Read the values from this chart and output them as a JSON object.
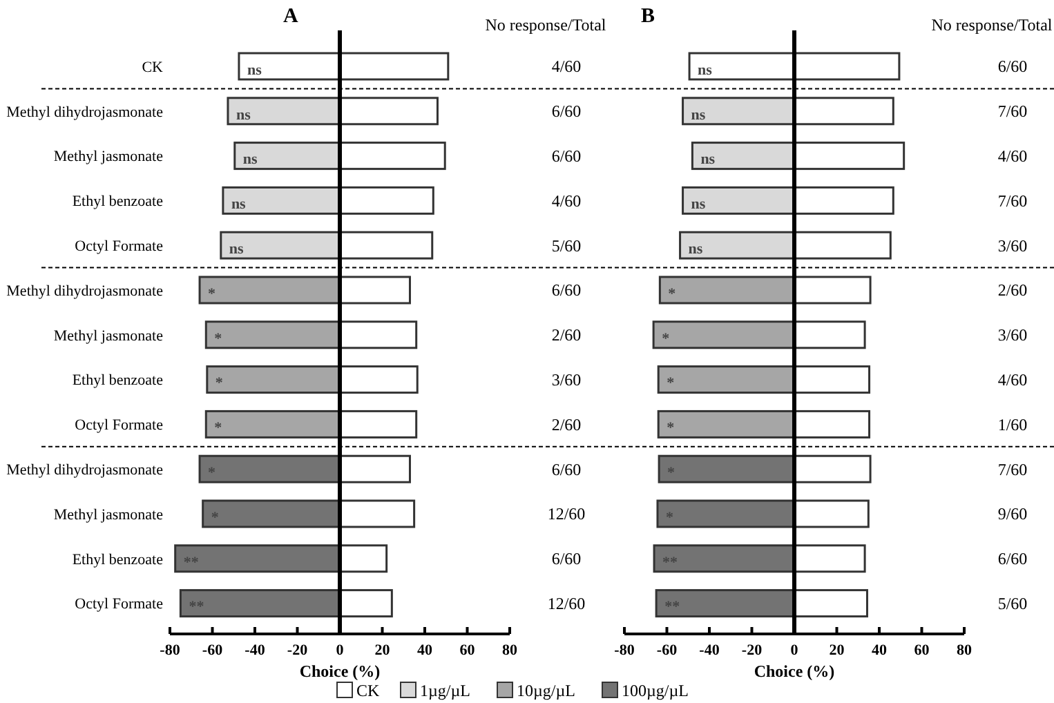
{
  "chart_data": [
    {
      "type": "bar",
      "title": "A",
      "xlabel": "Choice (%)",
      "orientation": "horizontal",
      "stacked": true,
      "legend": "bottom",
      "xlim": [
        -80,
        80
      ],
      "xticks": [
        -80,
        -60,
        -40,
        -20,
        0,
        20,
        40,
        60,
        80
      ],
      "categories": [
        "CK",
        "Methyl dihydrojasmonate",
        "Methyl jasmonate",
        "Ethyl benzoate",
        "Octyl Formate",
        "Methyl dihydrojasmonate",
        "Methyl jasmonate",
        "Ethyl benzoate",
        "Octyl Formate",
        "Methyl dihydrojasmonate",
        "Methyl jasmonate",
        "Ethyl benzoate",
        "Octyl Formate"
      ],
      "annotations": [
        "No response/Total"
      ],
      "series": [
        {
          "name": "CK",
          "color": "#ffffff",
          "values": [
            51,
            46,
            49.5,
            44,
            43.5,
            33,
            36,
            36.5,
            36,
            33,
            35,
            22,
            24.5
          ],
          "value_labels": [
            "4/60",
            "6/60",
            "6/60",
            "4/60",
            "5/60",
            "6/60",
            "2/60",
            "3/60",
            "2/60",
            "6/60",
            "12/60",
            "6/60",
            "12/60"
          ]
        },
        {
          "color": "#ffffff",
          "values": [
            -47.5,
            null,
            null,
            null,
            null,
            null,
            null,
            null,
            null,
            null,
            null,
            null,
            null
          ],
          "value_labels": [
            "ns",
            null,
            null,
            null,
            null,
            null,
            null,
            null,
            null,
            null,
            null,
            null,
            null
          ]
        },
        {
          "name": "1µg/µL",
          "color": "#d9d9d9",
          "values": [
            null,
            -52.7,
            -49.5,
            -55,
            -56,
            null,
            null,
            null,
            null,
            null,
            null,
            null,
            null
          ],
          "value_labels": [
            null,
            "ns",
            "ns",
            "ns",
            "ns",
            null,
            null,
            null,
            null,
            null,
            null,
            null,
            null
          ]
        },
        {
          "name": "10µg/µL",
          "color": "#a6a6a6",
          "values": [
            null,
            null,
            null,
            null,
            null,
            -66,
            -63,
            -62.5,
            -63,
            null,
            null,
            null,
            null
          ],
          "value_labels": [
            null,
            null,
            null,
            null,
            null,
            "*",
            "*",
            "*",
            "*",
            null,
            null,
            null,
            null
          ]
        },
        {
          "name": "100µg/µL",
          "color": "#737373",
          "values": [
            null,
            null,
            null,
            null,
            null,
            null,
            null,
            null,
            null,
            -66,
            -64.5,
            -77.5,
            -75
          ],
          "value_labels": [
            null,
            null,
            null,
            null,
            null,
            null,
            null,
            null,
            null,
            "*",
            "*",
            "**",
            "**"
          ]
        }
      ]
    },
    {
      "type": "bar",
      "title": "B",
      "xlabel": "Choice (%)",
      "orientation": "horizontal",
      "stacked": true,
      "legend": "bottom",
      "xlim": [
        -80,
        80
      ],
      "xticks": [
        -80,
        -60,
        -40,
        -20,
        0,
        20,
        40,
        60,
        80
      ],
      "categories": [
        null,
        null,
        null,
        null,
        null,
        null,
        null,
        null,
        null,
        null,
        null,
        null,
        null
      ],
      "annotations": [
        "No response/Total"
      ],
      "series": [
        {
          "name": "CK",
          "color": "#ffffff",
          "values": [
            49.4,
            46.6,
            51.6,
            46.6,
            45.3,
            35.8,
            33.2,
            35.3,
            35.3,
            35.8,
            34.9,
            33.2,
            34.3
          ],
          "value_labels": [
            "6/60",
            "7/60",
            "4/60",
            "7/60",
            "3/60",
            "2/60",
            "3/60",
            "4/60",
            "1/60",
            "7/60",
            "9/60",
            "6/60",
            "5/60"
          ]
        },
        {
          "color": "#ffffff",
          "values": [
            -49.4,
            null,
            null,
            null,
            null,
            null,
            null,
            null,
            null,
            null,
            null,
            null,
            null
          ],
          "value_labels": [
            "ns",
            null,
            null,
            null,
            null,
            null,
            null,
            null,
            null,
            null,
            null,
            null,
            null
          ]
        },
        {
          "name": "1µg/µL",
          "color": "#d9d9d9",
          "values": [
            null,
            -52.5,
            -48,
            -52.5,
            -53.8,
            null,
            null,
            null,
            null,
            null,
            null,
            null,
            null
          ],
          "value_labels": [
            null,
            "ns",
            "ns",
            "ns",
            "ns",
            null,
            null,
            null,
            null,
            null,
            null,
            null,
            null
          ]
        },
        {
          "name": "10µg/µL",
          "color": "#a6a6a6",
          "values": [
            null,
            null,
            null,
            null,
            null,
            -63.3,
            -66.3,
            -64,
            -64,
            null,
            null,
            null,
            null
          ],
          "value_labels": [
            null,
            null,
            null,
            null,
            null,
            "*",
            "*",
            "*",
            "*",
            null,
            null,
            null,
            null
          ]
        },
        {
          "name": "100µg/µL",
          "color": "#737373",
          "values": [
            null,
            null,
            null,
            null,
            null,
            null,
            null,
            null,
            null,
            -63.7,
            -64.4,
            -66,
            -65
          ],
          "value_labels": [
            null,
            null,
            null,
            null,
            null,
            null,
            null,
            null,
            null,
            "*",
            "*",
            "**",
            "**"
          ]
        }
      ]
    }
  ]
}
